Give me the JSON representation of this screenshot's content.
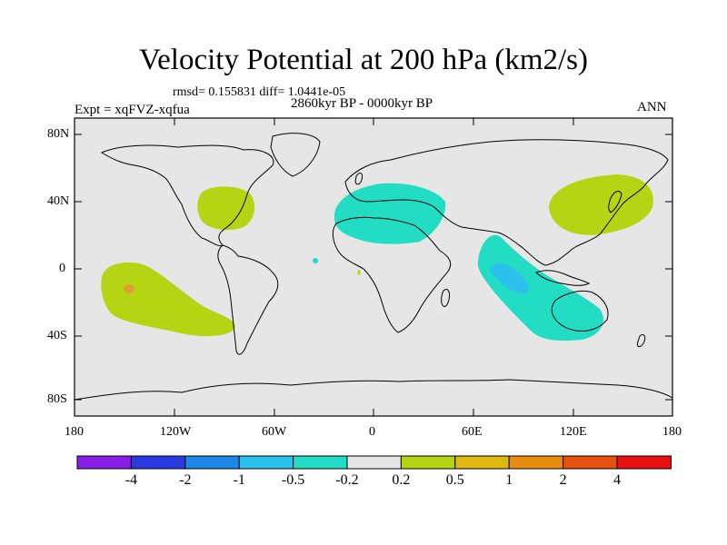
{
  "title": "Velocity Potential at 200 hPa (km2/s)",
  "stats_line": "rmsd= 0.155831 diff= 1.0441e-05",
  "period": "2860kyr BP - 0000kyr BP",
  "experiment": "Expt = xqFVZ-xqfua",
  "season": "ANN",
  "y_axis_labels": [
    "80N",
    "40N",
    "0",
    "40S",
    "80S"
  ],
  "x_axis_labels": [
    "180",
    "120W",
    "60W",
    "0",
    "60E",
    "120E",
    "180"
  ],
  "colorbar": {
    "colors": [
      "#8a1ee8",
      "#2a3ae0",
      "#1c88e8",
      "#2cc0ec",
      "#22dcc4",
      "#e6e6e6",
      "#b4d414",
      "#e0b810",
      "#e88c10",
      "#e85010",
      "#e81010"
    ],
    "labels": [
      "-4",
      "-2",
      "-1",
      "-0.5",
      "-0.2",
      "0.2",
      "0.5",
      "1",
      "2",
      "4"
    ]
  },
  "colors": {
    "background_field": "#e6e6e6",
    "positive_light": "#b4d414",
    "negative_light": "#22dcc4",
    "negative_medium": "#2cc0ec",
    "positive_medium": "#e0a030"
  }
}
